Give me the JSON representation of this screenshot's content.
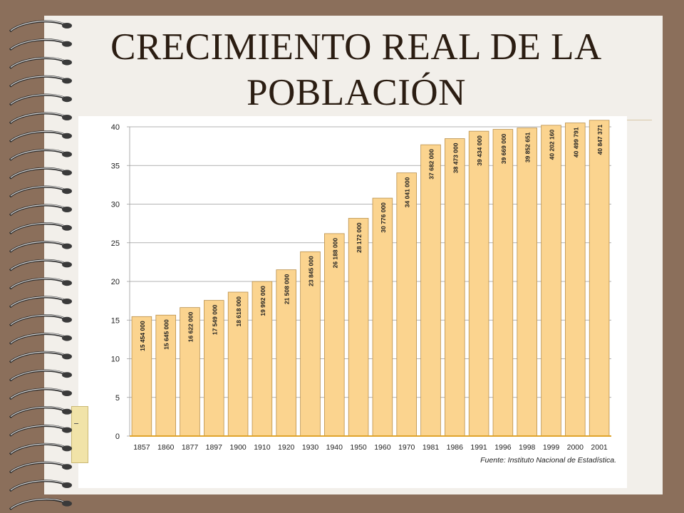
{
  "slide": {
    "title_line1": "CRECIMIENTO REAL DE LA",
    "title_line2": "POBLACIÓN"
  },
  "colors": {
    "bar_fill": "#fbd48f",
    "bar_stroke": "#b98f4a",
    "baseline": "#e0a42b",
    "grid": "#9a9a9a",
    "text": "#222222"
  },
  "chart_data": {
    "type": "bar",
    "title": "",
    "xlabel": "",
    "ylabel": "",
    "ylim": [
      0,
      40
    ],
    "yticks": [
      0,
      5,
      10,
      15,
      20,
      25,
      30,
      35,
      40
    ],
    "grid": true,
    "source": "Fuente: Instituto Nacional de Estadística.",
    "categories": [
      "1857",
      "1860",
      "1877",
      "1897",
      "1900",
      "1910",
      "1920",
      "1930",
      "1940",
      "1950",
      "1960",
      "1970",
      "1981",
      "1986",
      "1991",
      "1996",
      "1998",
      "1999",
      "2000",
      "2001"
    ],
    "values": [
      15.454,
      15.645,
      16.622,
      17.549,
      18.618,
      19.992,
      21.508,
      23.845,
      26.188,
      28.172,
      30.776,
      34.041,
      37.682,
      38.473,
      39.434,
      39.669,
      39.852651,
      40.20216,
      40.499791,
      40.847371
    ],
    "data_labels": [
      "15 454 000",
      "15 645 000",
      "16 622 000",
      "17 549 000",
      "18 618 000",
      "19 992 000",
      "21 508 000",
      "23 845 000",
      "26 188 000",
      "28 172 000",
      "30 776 000",
      "34 041 000",
      "37 682 000",
      "38 473 000",
      "39 434 000",
      "39 669 000",
      "39 852 651",
      "40 202 160",
      "40 499 791",
      "40 847 371"
    ]
  }
}
